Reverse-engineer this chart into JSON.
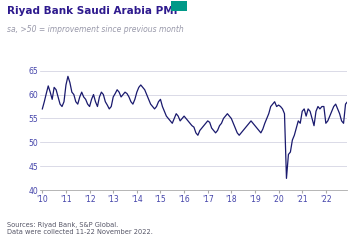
{
  "title": "Riyad Bank Saudi Arabia PMI",
  "subtitle": "sa, >50 = improvement since previous month",
  "source_text": "Sources: Riyad Bank, S&P Global.\nData were collected 11-22 November 2022.",
  "line_color": "#1a1a6e",
  "line_width": 0.9,
  "title_color": "#2E1A8E",
  "subtitle_color": "#9999aa",
  "source_color": "#555566",
  "background_color": "#ffffff",
  "grid_color": "#ccccdd",
  "ylim": [
    40,
    66
  ],
  "yticks": [
    40,
    45,
    50,
    55,
    60,
    65
  ],
  "xtick_labels": [
    "'10",
    "'11",
    "'12",
    "'13",
    "'14",
    "'15",
    "'16",
    "'17",
    "'18",
    "'19",
    "'20",
    "'21",
    "'22"
  ],
  "accent_color": "#009988",
  "data": [
    57.0,
    58.5,
    60.2,
    61.8,
    60.5,
    59.0,
    61.5,
    61.0,
    59.5,
    58.0,
    57.5,
    58.5,
    62.0,
    63.8,
    62.5,
    60.5,
    60.0,
    58.5,
    58.0,
    59.5,
    60.5,
    59.5,
    59.0,
    58.0,
    57.5,
    59.0,
    60.0,
    58.5,
    57.5,
    59.5,
    60.5,
    60.0,
    58.5,
    57.8,
    57.0,
    57.5,
    59.5,
    60.2,
    61.0,
    60.5,
    59.5,
    60.0,
    60.5,
    60.2,
    59.5,
    58.5,
    58.0,
    59.0,
    60.5,
    61.5,
    62.0,
    61.5,
    61.0,
    60.0,
    59.0,
    58.0,
    57.5,
    57.0,
    57.5,
    58.5,
    59.0,
    57.5,
    56.5,
    55.5,
    55.0,
    54.5,
    54.0,
    55.0,
    56.0,
    55.5,
    54.5,
    55.0,
    55.5,
    55.0,
    54.5,
    54.0,
    53.5,
    53.2,
    52.0,
    51.5,
    52.5,
    53.0,
    53.5,
    54.0,
    54.5,
    54.2,
    53.0,
    52.5,
    52.0,
    52.5,
    53.5,
    54.0,
    55.0,
    55.5,
    56.0,
    55.5,
    55.0,
    54.0,
    53.0,
    52.0,
    51.5,
    52.0,
    52.5,
    53.0,
    53.5,
    54.0,
    54.5,
    54.0,
    53.5,
    53.0,
    52.5,
    52.0,
    52.8,
    54.0,
    55.0,
    56.0,
    57.5,
    58.0,
    58.5,
    57.5,
    57.8,
    57.5,
    57.0,
    56.0,
    42.5,
    47.5,
    48.0,
    50.5,
    51.5,
    53.0,
    54.5,
    54.0,
    56.5,
    57.0,
    55.5,
    57.0,
    56.5,
    55.0,
    53.5,
    56.5,
    57.5,
    57.0,
    57.5,
    57.5,
    54.0,
    54.5,
    55.5,
    56.5,
    57.5,
    58.0,
    57.0,
    56.0,
    54.5,
    54.0,
    58.0,
    58.5
  ]
}
